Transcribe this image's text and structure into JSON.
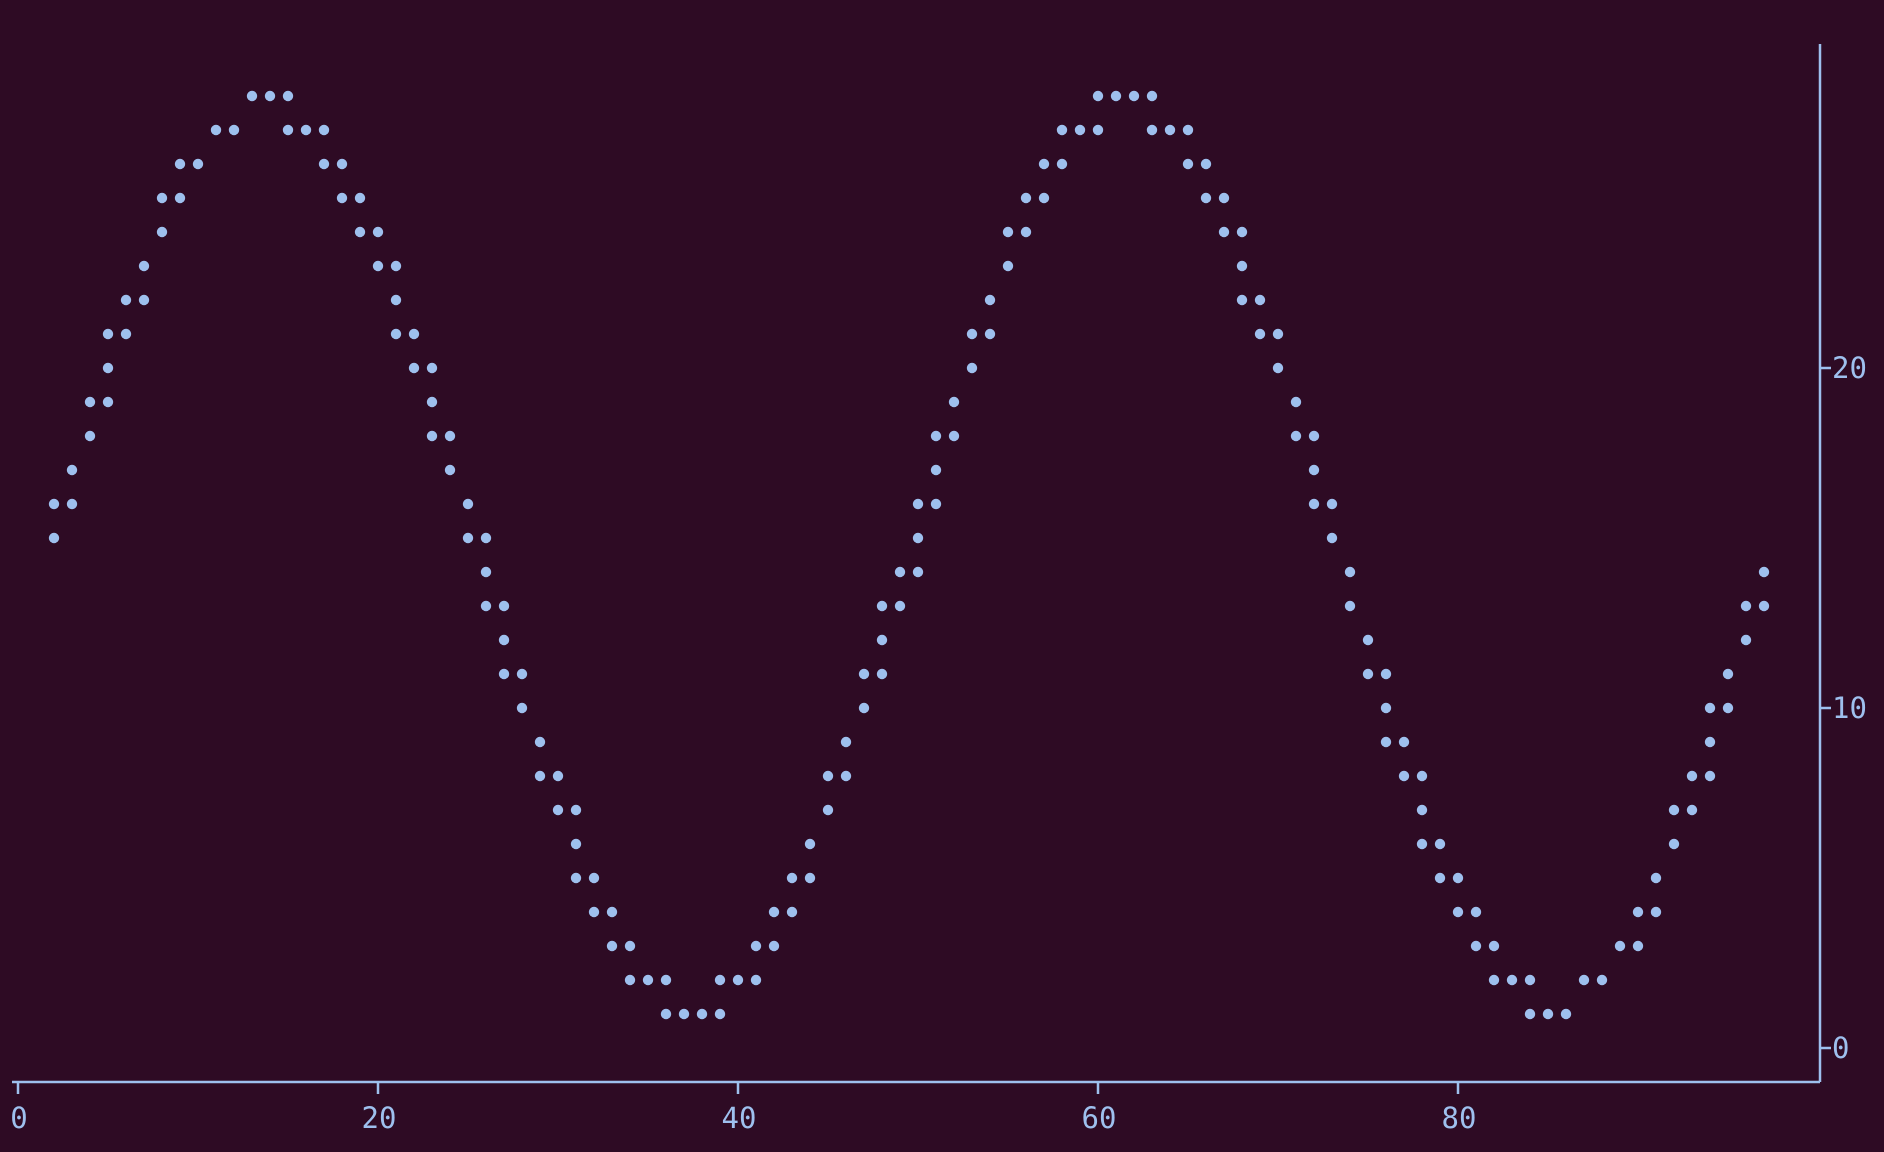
{
  "theme": {
    "background": "#2e0b24",
    "foreground": "#9ec0ee"
  },
  "chart_data": {
    "type": "scatter",
    "title": "",
    "xlabel": "",
    "ylabel": "",
    "xlim": [
      0,
      100
    ],
    "ylim": [
      -1,
      29.5
    ],
    "x_ticks": [
      0,
      20,
      40,
      60,
      80
    ],
    "y_ticks": [
      0,
      10,
      20
    ],
    "y_axis_position": "right",
    "grid": false,
    "legend": "none",
    "series": [
      {
        "points": [
          [
            2,
            15
          ],
          [
            2,
            16
          ],
          [
            3,
            16
          ],
          [
            3,
            17
          ],
          [
            4,
            18
          ],
          [
            4,
            19
          ],
          [
            5,
            19
          ],
          [
            5,
            20
          ],
          [
            5,
            21
          ],
          [
            6,
            21
          ],
          [
            6,
            22
          ],
          [
            7,
            22
          ],
          [
            7,
            23
          ],
          [
            8,
            24
          ],
          [
            8,
            25
          ],
          [
            9,
            25
          ],
          [
            9,
            26
          ],
          [
            10,
            26
          ],
          [
            11,
            27
          ],
          [
            12,
            27
          ],
          [
            13,
            28
          ],
          [
            14,
            28
          ],
          [
            15,
            28
          ],
          [
            15,
            27
          ],
          [
            16,
            27
          ],
          [
            17,
            27
          ],
          [
            17,
            26
          ],
          [
            18,
            26
          ],
          [
            18,
            25
          ],
          [
            19,
            25
          ],
          [
            19,
            24
          ],
          [
            20,
            24
          ],
          [
            20,
            23
          ],
          [
            21,
            23
          ],
          [
            21,
            22
          ],
          [
            21,
            21
          ],
          [
            22,
            21
          ],
          [
            22,
            20
          ],
          [
            23,
            20
          ],
          [
            23,
            19
          ],
          [
            23,
            18
          ],
          [
            24,
            18
          ],
          [
            24,
            17
          ],
          [
            25,
            16
          ],
          [
            25,
            15
          ],
          [
            26,
            15
          ],
          [
            26,
            14
          ],
          [
            26,
            13
          ],
          [
            27,
            13
          ],
          [
            27,
            12
          ],
          [
            27,
            11
          ],
          [
            28,
            11
          ],
          [
            28,
            10
          ],
          [
            29,
            9
          ],
          [
            29,
            8
          ],
          [
            30,
            8
          ],
          [
            30,
            7
          ],
          [
            31,
            7
          ],
          [
            31,
            6
          ],
          [
            31,
            5
          ],
          [
            32,
            5
          ],
          [
            32,
            4
          ],
          [
            33,
            4
          ],
          [
            33,
            3
          ],
          [
            34,
            3
          ],
          [
            34,
            2
          ],
          [
            35,
            2
          ],
          [
            36,
            2
          ],
          [
            36,
            1
          ],
          [
            37,
            1
          ],
          [
            38,
            1
          ],
          [
            39,
            1
          ],
          [
            39,
            2
          ],
          [
            40,
            2
          ],
          [
            41,
            2
          ],
          [
            41,
            3
          ],
          [
            42,
            3
          ],
          [
            42,
            4
          ],
          [
            43,
            4
          ],
          [
            43,
            5
          ],
          [
            44,
            5
          ],
          [
            44,
            6
          ],
          [
            45,
            7
          ],
          [
            45,
            8
          ],
          [
            46,
            8
          ],
          [
            46,
            9
          ],
          [
            47,
            10
          ],
          [
            47,
            11
          ],
          [
            48,
            11
          ],
          [
            48,
            12
          ],
          [
            48,
            13
          ],
          [
            49,
            13
          ],
          [
            49,
            14
          ],
          [
            50,
            14
          ],
          [
            50,
            15
          ],
          [
            50,
            16
          ],
          [
            51,
            16
          ],
          [
            51,
            17
          ],
          [
            51,
            18
          ],
          [
            52,
            18
          ],
          [
            52,
            19
          ],
          [
            53,
            20
          ],
          [
            53,
            21
          ],
          [
            54,
            21
          ],
          [
            54,
            22
          ],
          [
            55,
            23
          ],
          [
            55,
            24
          ],
          [
            56,
            24
          ],
          [
            56,
            25
          ],
          [
            57,
            25
          ],
          [
            57,
            26
          ],
          [
            58,
            26
          ],
          [
            58,
            27
          ],
          [
            59,
            27
          ],
          [
            60,
            27
          ],
          [
            60,
            28
          ],
          [
            61,
            28
          ],
          [
            62,
            28
          ],
          [
            63,
            28
          ],
          [
            63,
            27
          ],
          [
            64,
            27
          ],
          [
            65,
            27
          ],
          [
            65,
            26
          ],
          [
            66,
            26
          ],
          [
            66,
            25
          ],
          [
            67,
            25
          ],
          [
            67,
            24
          ],
          [
            68,
            24
          ],
          [
            68,
            23
          ],
          [
            68,
            22
          ],
          [
            69,
            22
          ],
          [
            69,
            21
          ],
          [
            70,
            21
          ],
          [
            70,
            20
          ],
          [
            71,
            19
          ],
          [
            71,
            18
          ],
          [
            72,
            18
          ],
          [
            72,
            17
          ],
          [
            72,
            16
          ],
          [
            73,
            16
          ],
          [
            73,
            15
          ],
          [
            74,
            14
          ],
          [
            74,
            13
          ],
          [
            75,
            12
          ],
          [
            75,
            11
          ],
          [
            76,
            11
          ],
          [
            76,
            10
          ],
          [
            76,
            9
          ],
          [
            77,
            9
          ],
          [
            77,
            8
          ],
          [
            78,
            8
          ],
          [
            78,
            7
          ],
          [
            78,
            6
          ],
          [
            79,
            6
          ],
          [
            79,
            5
          ],
          [
            80,
            5
          ],
          [
            80,
            4
          ],
          [
            81,
            4
          ],
          [
            81,
            3
          ],
          [
            82,
            3
          ],
          [
            82,
            2
          ],
          [
            83,
            2
          ],
          [
            84,
            2
          ],
          [
            84,
            1
          ],
          [
            85,
            1
          ],
          [
            86,
            1
          ],
          [
            87,
            2
          ],
          [
            88,
            2
          ],
          [
            89,
            3
          ],
          [
            90,
            3
          ],
          [
            90,
            4
          ],
          [
            91,
            4
          ],
          [
            91,
            5
          ],
          [
            92,
            6
          ],
          [
            92,
            7
          ],
          [
            93,
            7
          ],
          [
            93,
            8
          ],
          [
            94,
            8
          ],
          [
            94,
            9
          ],
          [
            94,
            10
          ],
          [
            95,
            10
          ],
          [
            95,
            11
          ],
          [
            96,
            12
          ],
          [
            96,
            13
          ],
          [
            97,
            13
          ],
          [
            97,
            14
          ]
        ]
      }
    ]
  }
}
